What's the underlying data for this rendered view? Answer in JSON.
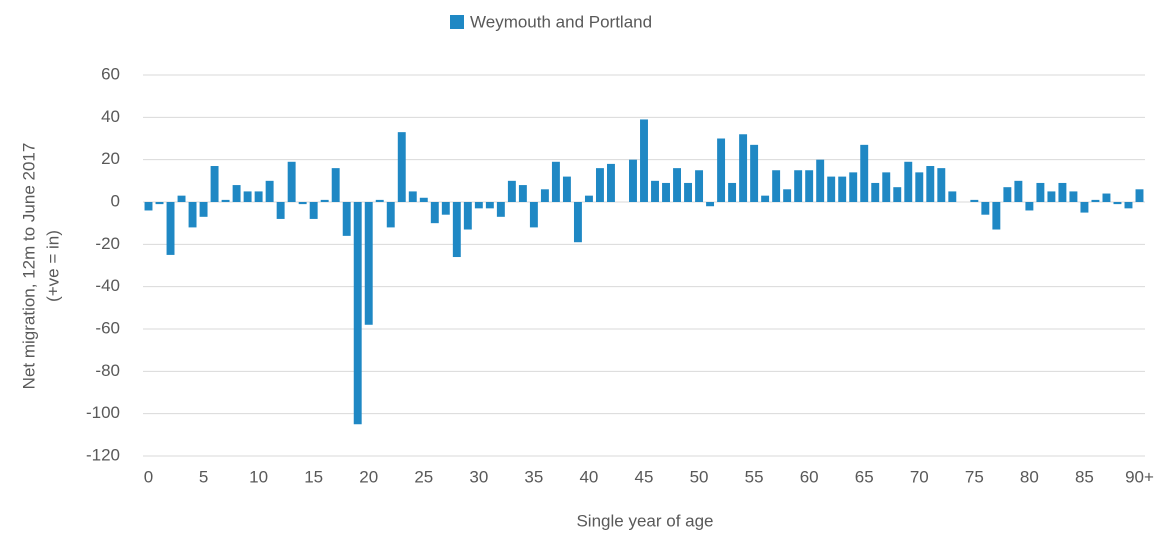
{
  "chart_data": {
    "type": "bar",
    "legend": "Weymouth and Portland",
    "xlabel": "Single year of age",
    "ylabel": [
      "Net migration, 12m to June 2017",
      "(+ve = in)"
    ],
    "categories": [
      "0",
      null,
      null,
      null,
      null,
      "5",
      null,
      null,
      null,
      null,
      "10",
      null,
      null,
      null,
      null,
      "15",
      null,
      null,
      null,
      null,
      "20",
      null,
      null,
      null,
      null,
      "25",
      null,
      null,
      null,
      null,
      "30",
      null,
      null,
      null,
      null,
      "35",
      null,
      null,
      null,
      null,
      "40",
      null,
      null,
      null,
      null,
      "45",
      null,
      null,
      null,
      null,
      "50",
      null,
      null,
      null,
      null,
      "55",
      null,
      null,
      null,
      null,
      "60",
      null,
      null,
      null,
      null,
      "65",
      null,
      null,
      null,
      null,
      "70",
      null,
      null,
      null,
      null,
      "75",
      null,
      null,
      null,
      null,
      "80",
      null,
      null,
      null,
      null,
      "85",
      null,
      null,
      null,
      null,
      "90+"
    ],
    "values": [
      -4,
      -1,
      -25,
      3,
      -12,
      -7,
      17,
      1,
      8,
      5,
      5,
      10,
      -8,
      19,
      -1,
      -8,
      1,
      16,
      -16,
      -105,
      -58,
      1,
      -12,
      33,
      5,
      2,
      -10,
      -6,
      -26,
      -13,
      -3,
      -3,
      -7,
      10,
      8,
      -12,
      6,
      19,
      12,
      -19,
      3,
      16,
      18,
      0,
      20,
      39,
      10,
      9,
      16,
      9,
      15,
      -2,
      30,
      9,
      32,
      27,
      3,
      15,
      6,
      15,
      15,
      20,
      12,
      12,
      14,
      27,
      9,
      14,
      7,
      19,
      14,
      17,
      16,
      5,
      0,
      1,
      -6,
      -13,
      7,
      10,
      -4,
      9,
      5,
      9,
      5,
      -5,
      1,
      4,
      -1,
      -3,
      6
    ],
    "color": "#1f88c4",
    "ylim": [
      -120,
      60
    ],
    "yticks": [
      60,
      40,
      20,
      0,
      -20,
      -40,
      -60,
      -80,
      -100,
      -120
    ],
    "grid": true
  }
}
